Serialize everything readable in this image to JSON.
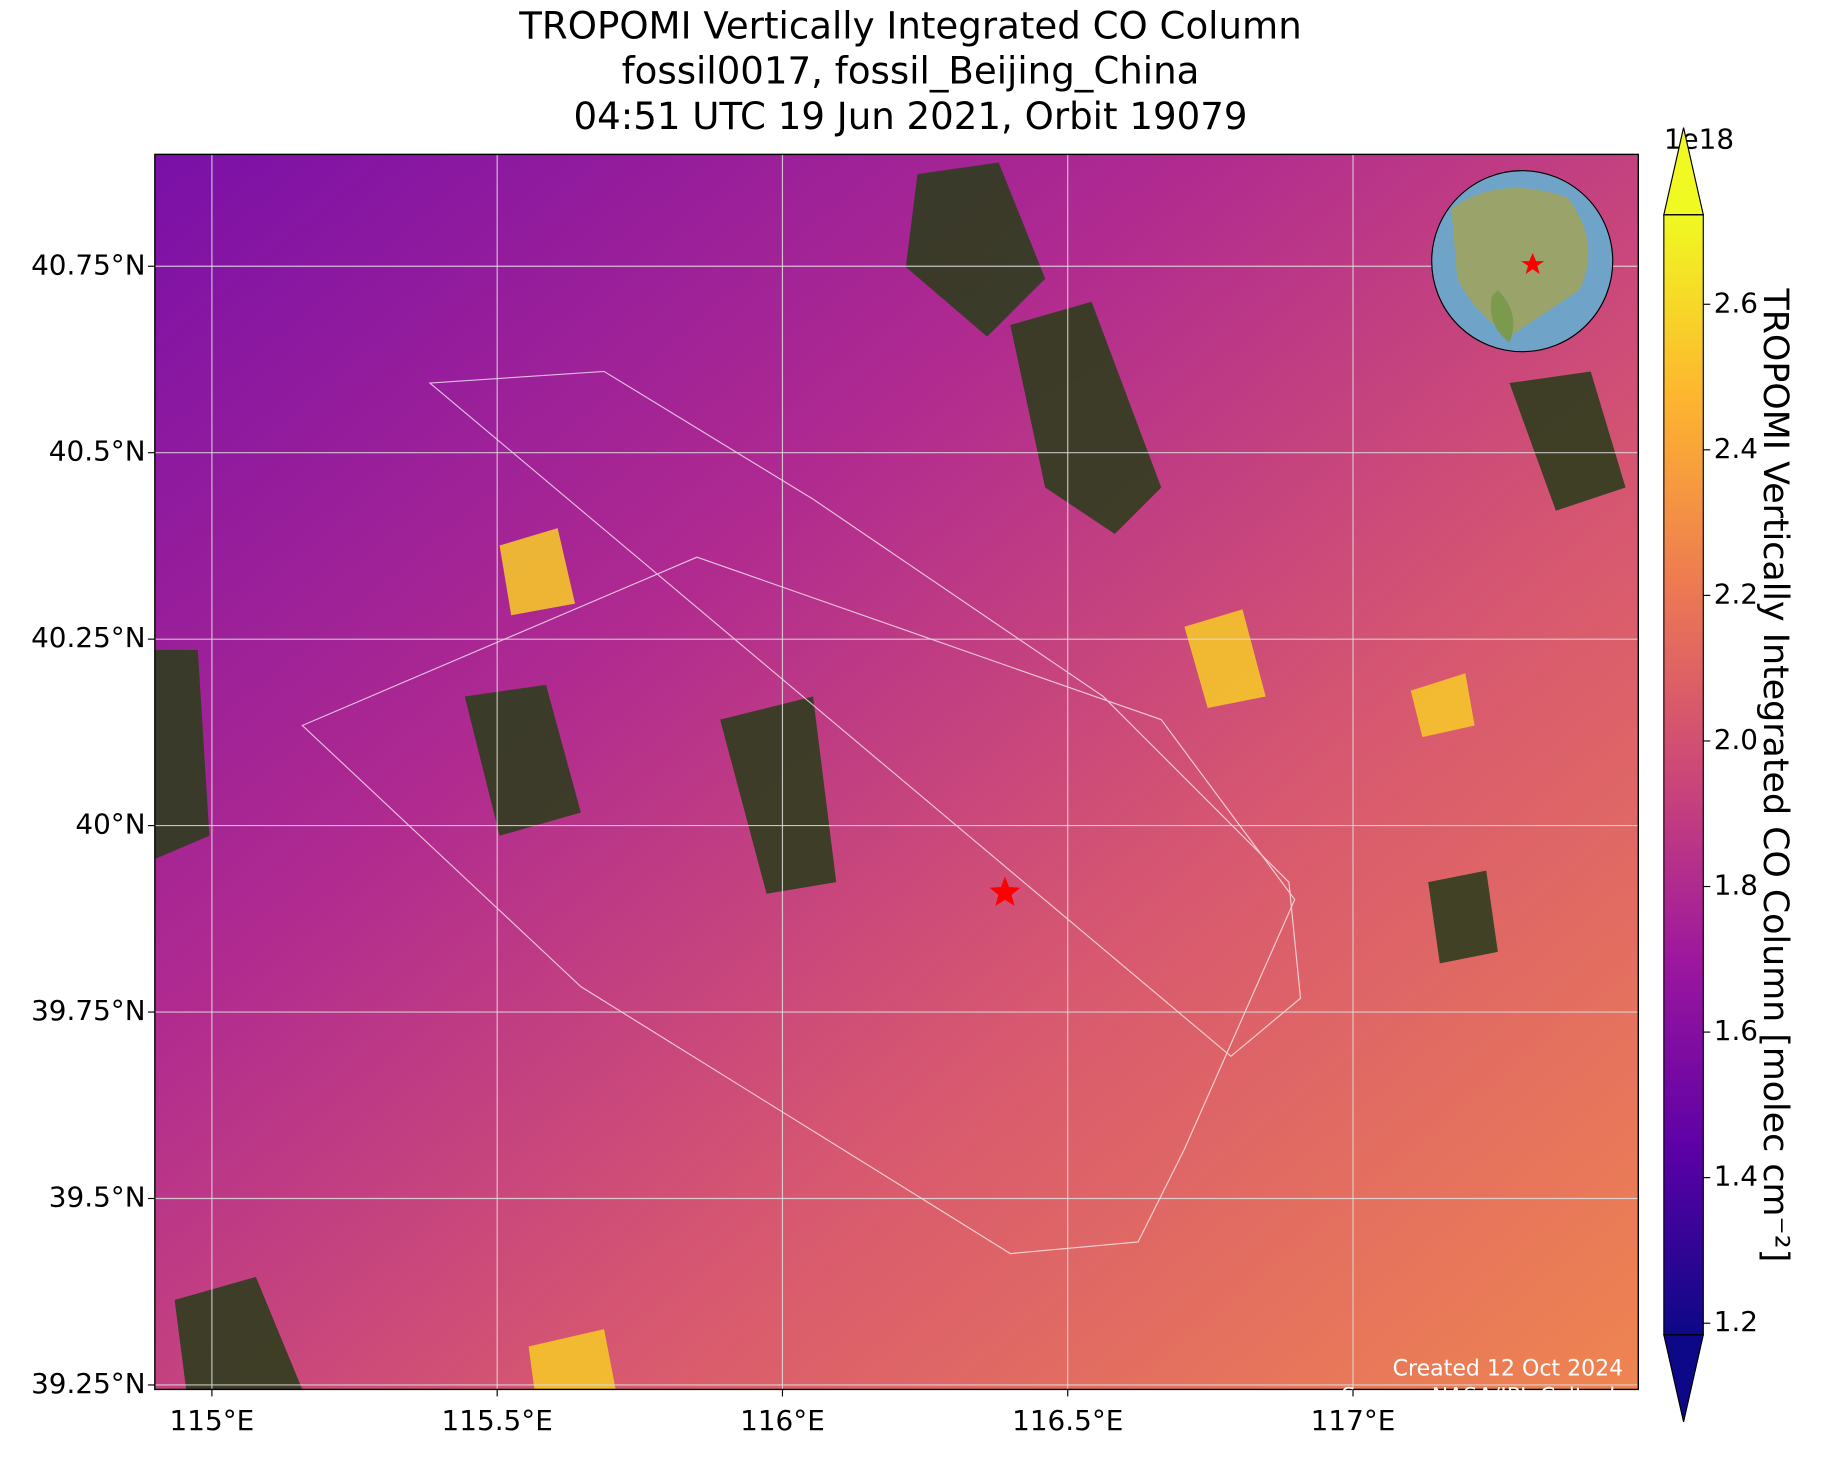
{
  "chart_data": {
    "type": "map",
    "title": [
      "TROPOMI Vertically Integrated CO Column",
      "fossil0017, fossil_Beijing_China",
      "04:51 UTC 19 Jun 2021, Orbit 19079"
    ],
    "xlim": [
      114.9,
      117.5
    ],
    "ylim": [
      39.244,
      40.9
    ],
    "xticks": [
      {
        "value": 115,
        "label": "115°E"
      },
      {
        "value": 115.5,
        "label": "115.5°E"
      },
      {
        "value": 116,
        "label": "116°E"
      },
      {
        "value": 116.5,
        "label": "116.5°E"
      },
      {
        "value": 117,
        "label": "117°E"
      }
    ],
    "yticks": [
      {
        "value": 39.25,
        "label": "39.25°N"
      },
      {
        "value": 39.5,
        "label": "39.5°N"
      },
      {
        "value": 39.75,
        "label": "39.75°N"
      },
      {
        "value": 40,
        "label": "40°N"
      },
      {
        "value": 40.25,
        "label": "40.25°N"
      },
      {
        "value": 40.5,
        "label": "40.5°N"
      },
      {
        "value": 40.75,
        "label": "40.75°N"
      }
    ],
    "grid": true,
    "site_marker": [
      116.39,
      39.91
    ],
    "colorbar": {
      "label": "TROPOMI Vertically Integrated CO Column [molec cm⁻²]",
      "exponent": "1e18",
      "clim": [
        1.184,
        2.723
      ],
      "colormap": [
        "#0d0887",
        "#5c01a6",
        "#9c179e",
        "#cc4778",
        "#ed7953",
        "#fdb42f",
        "#f0f921"
      ],
      "ticks": [
        1.2,
        1.4,
        1.6,
        1.8,
        {
          "value": 2,
          "label": "2.0"
        },
        2.2,
        2.4,
        2.6
      ]
    },
    "footer": [
      "Created 12 Oct 2024",
      "Source: NASA/JPL-Caltech"
    ]
  }
}
